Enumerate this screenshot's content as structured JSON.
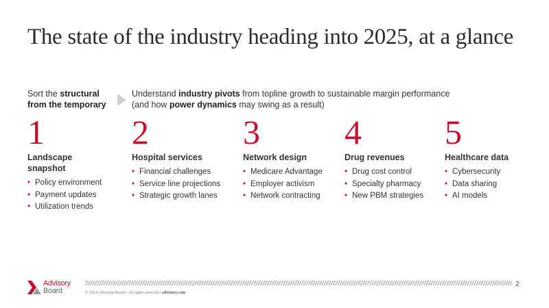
{
  "title": "The state of the industry heading into 2025, at a glance",
  "intro_left": {
    "pre": "Sort the ",
    "bold1": "structural",
    "bold2": "from the temporary"
  },
  "intro_right": {
    "pre": "Understand ",
    "bold1": "industry pivots",
    "mid": " from topline growth to sustainable margin performance",
    "pre2": "(and how ",
    "bold2": "power dynamics",
    "post": " may swing as a result)"
  },
  "columns": [
    {
      "number": "1",
      "title": "Landscape snapshot",
      "bullets": [
        "Policy environment",
        "Payment updates",
        "Utilization trends"
      ]
    },
    {
      "number": "2",
      "title": "Hospital services",
      "bullets": [
        "Financial challenges",
        "Service line projections",
        "Strategic growth lanes"
      ]
    },
    {
      "number": "3",
      "title": "Network design",
      "bullets": [
        "Medicare Advantage",
        "Employer activism",
        "Network contracting"
      ]
    },
    {
      "number": "4",
      "title": "Drug revenues",
      "bullets": [
        "Drug cost control",
        "Specialty pharmacy",
        "New PBM strategies"
      ]
    },
    {
      "number": "5",
      "title": "Healthcare data",
      "bullets": [
        "Cybersecurity",
        "Data sharing",
        "AI models"
      ]
    }
  ],
  "bullet_glyph": "•",
  "footer": {
    "logo_line1": "Advisory",
    "logo_line2": "Board",
    "copyright": "© 2024 Advisory Board • All rights reserved • ",
    "copyright_link": "advisory.com",
    "page_number": "2"
  },
  "colors": {
    "accent": "#c8102e",
    "text": "#333333",
    "arrow": "#cfcfcf"
  }
}
